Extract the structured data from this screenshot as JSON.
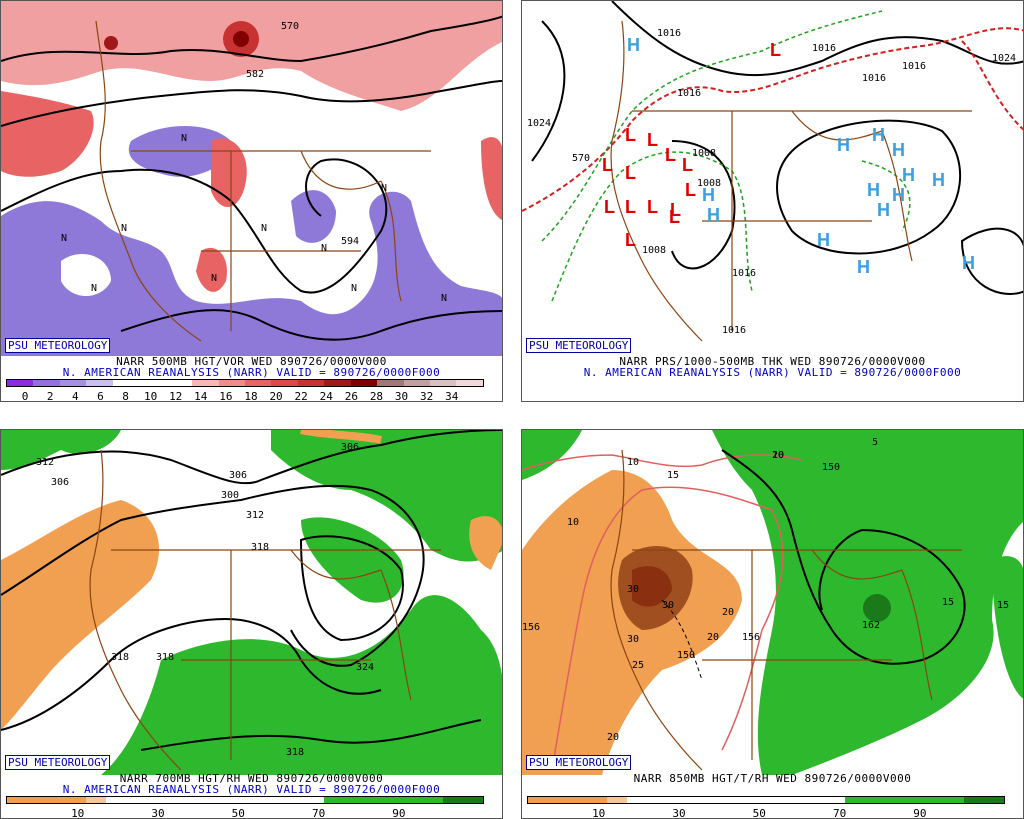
{
  "panels": {
    "p1": {
      "badge": "PSU METEOROLOGY",
      "caption_line1": "NARR 500MB HGT/VOR WED 890726/0000V000",
      "caption_line2": "N. AMERICAN REANALYSIS (NARR) VALID = 890726/0000F000",
      "colorbar_ticks": [
        "0",
        "2",
        "4",
        "6",
        "8",
        "10",
        "12",
        "14",
        "16",
        "18",
        "20",
        "22",
        "24",
        "26",
        "28",
        "30",
        "32",
        "34"
      ],
      "colorbar_colors": [
        "#8a2be2",
        "#9370db",
        "#a58fe0",
        "#c8bff0",
        "#ffffff",
        "#ffffff",
        "#ffffff",
        "#f7b8b8",
        "#f08c8c",
        "#e86464",
        "#e04848",
        "#c83232",
        "#a01818",
        "#800000",
        "#a07878",
        "#c0a0a0",
        "#d8c0c0",
        "#f0d8d8"
      ],
      "contour_labels": [
        "570",
        "582",
        "594"
      ],
      "vort_labels": [
        "N",
        "N",
        "N",
        "N",
        "N",
        "N",
        "N",
        "N",
        "N",
        "N"
      ]
    },
    "p2": {
      "badge": "PSU METEOROLOGY",
      "caption_line1": "NARR PRS/1000-500MB THK WED 890726/0000V000",
      "caption_line2": "N. AMERICAN REANALYSIS (NARR) VALID = 890726/0000F000",
      "isobar_labels": [
        "1016",
        "1016",
        "1016",
        "1016",
        "1016",
        "1024",
        "1024",
        "1008",
        "1008",
        "1008",
        "1016",
        "1016",
        "570"
      ],
      "low_label": "L",
      "high_label": "H"
    },
    "p3": {
      "badge": "PSU METEOROLOGY",
      "caption_line1": "NARR 700MB HGT/RH WED 890726/0000V000",
      "caption_line2": "N. AMERICAN REANALYSIS (NARR) VALID = 890726/0000F000",
      "colorbar_ticks": [
        "10",
        "30",
        "50",
        "70",
        "90"
      ],
      "contour_labels": [
        "312",
        "306",
        "306",
        "300",
        "312",
        "318",
        "318",
        "318",
        "324",
        "318",
        "306"
      ]
    },
    "p4": {
      "badge": "PSU METEOROLOGY",
      "caption_line1": "NARR 850MB HGT/T/RH WED 890726/0000V000",
      "caption_line2": "",
      "colorbar_ticks": [
        "10",
        "30",
        "50",
        "70",
        "90"
      ],
      "contour_labels": [
        "150",
        "150",
        "162",
        "156",
        "156",
        "5",
        "10",
        "10",
        "10",
        "15",
        "15",
        "15",
        "20",
        "20",
        "20",
        "20",
        "25",
        "30",
        "30",
        "30"
      ]
    }
  },
  "colors": {
    "border_brown": "#8b4513",
    "rh_green": "#2db82d",
    "rh_dark_green": "#1a7a1a",
    "dry_orange": "#f0a050",
    "dry_brown": "#a05020",
    "vort_red": "#e86464",
    "vort_purple": "#8f79d8",
    "low_red": "#e00000",
    "high_blue": "#3aa0e0",
    "thickness_red": "#d02020",
    "thickness_green": "#20a020"
  }
}
